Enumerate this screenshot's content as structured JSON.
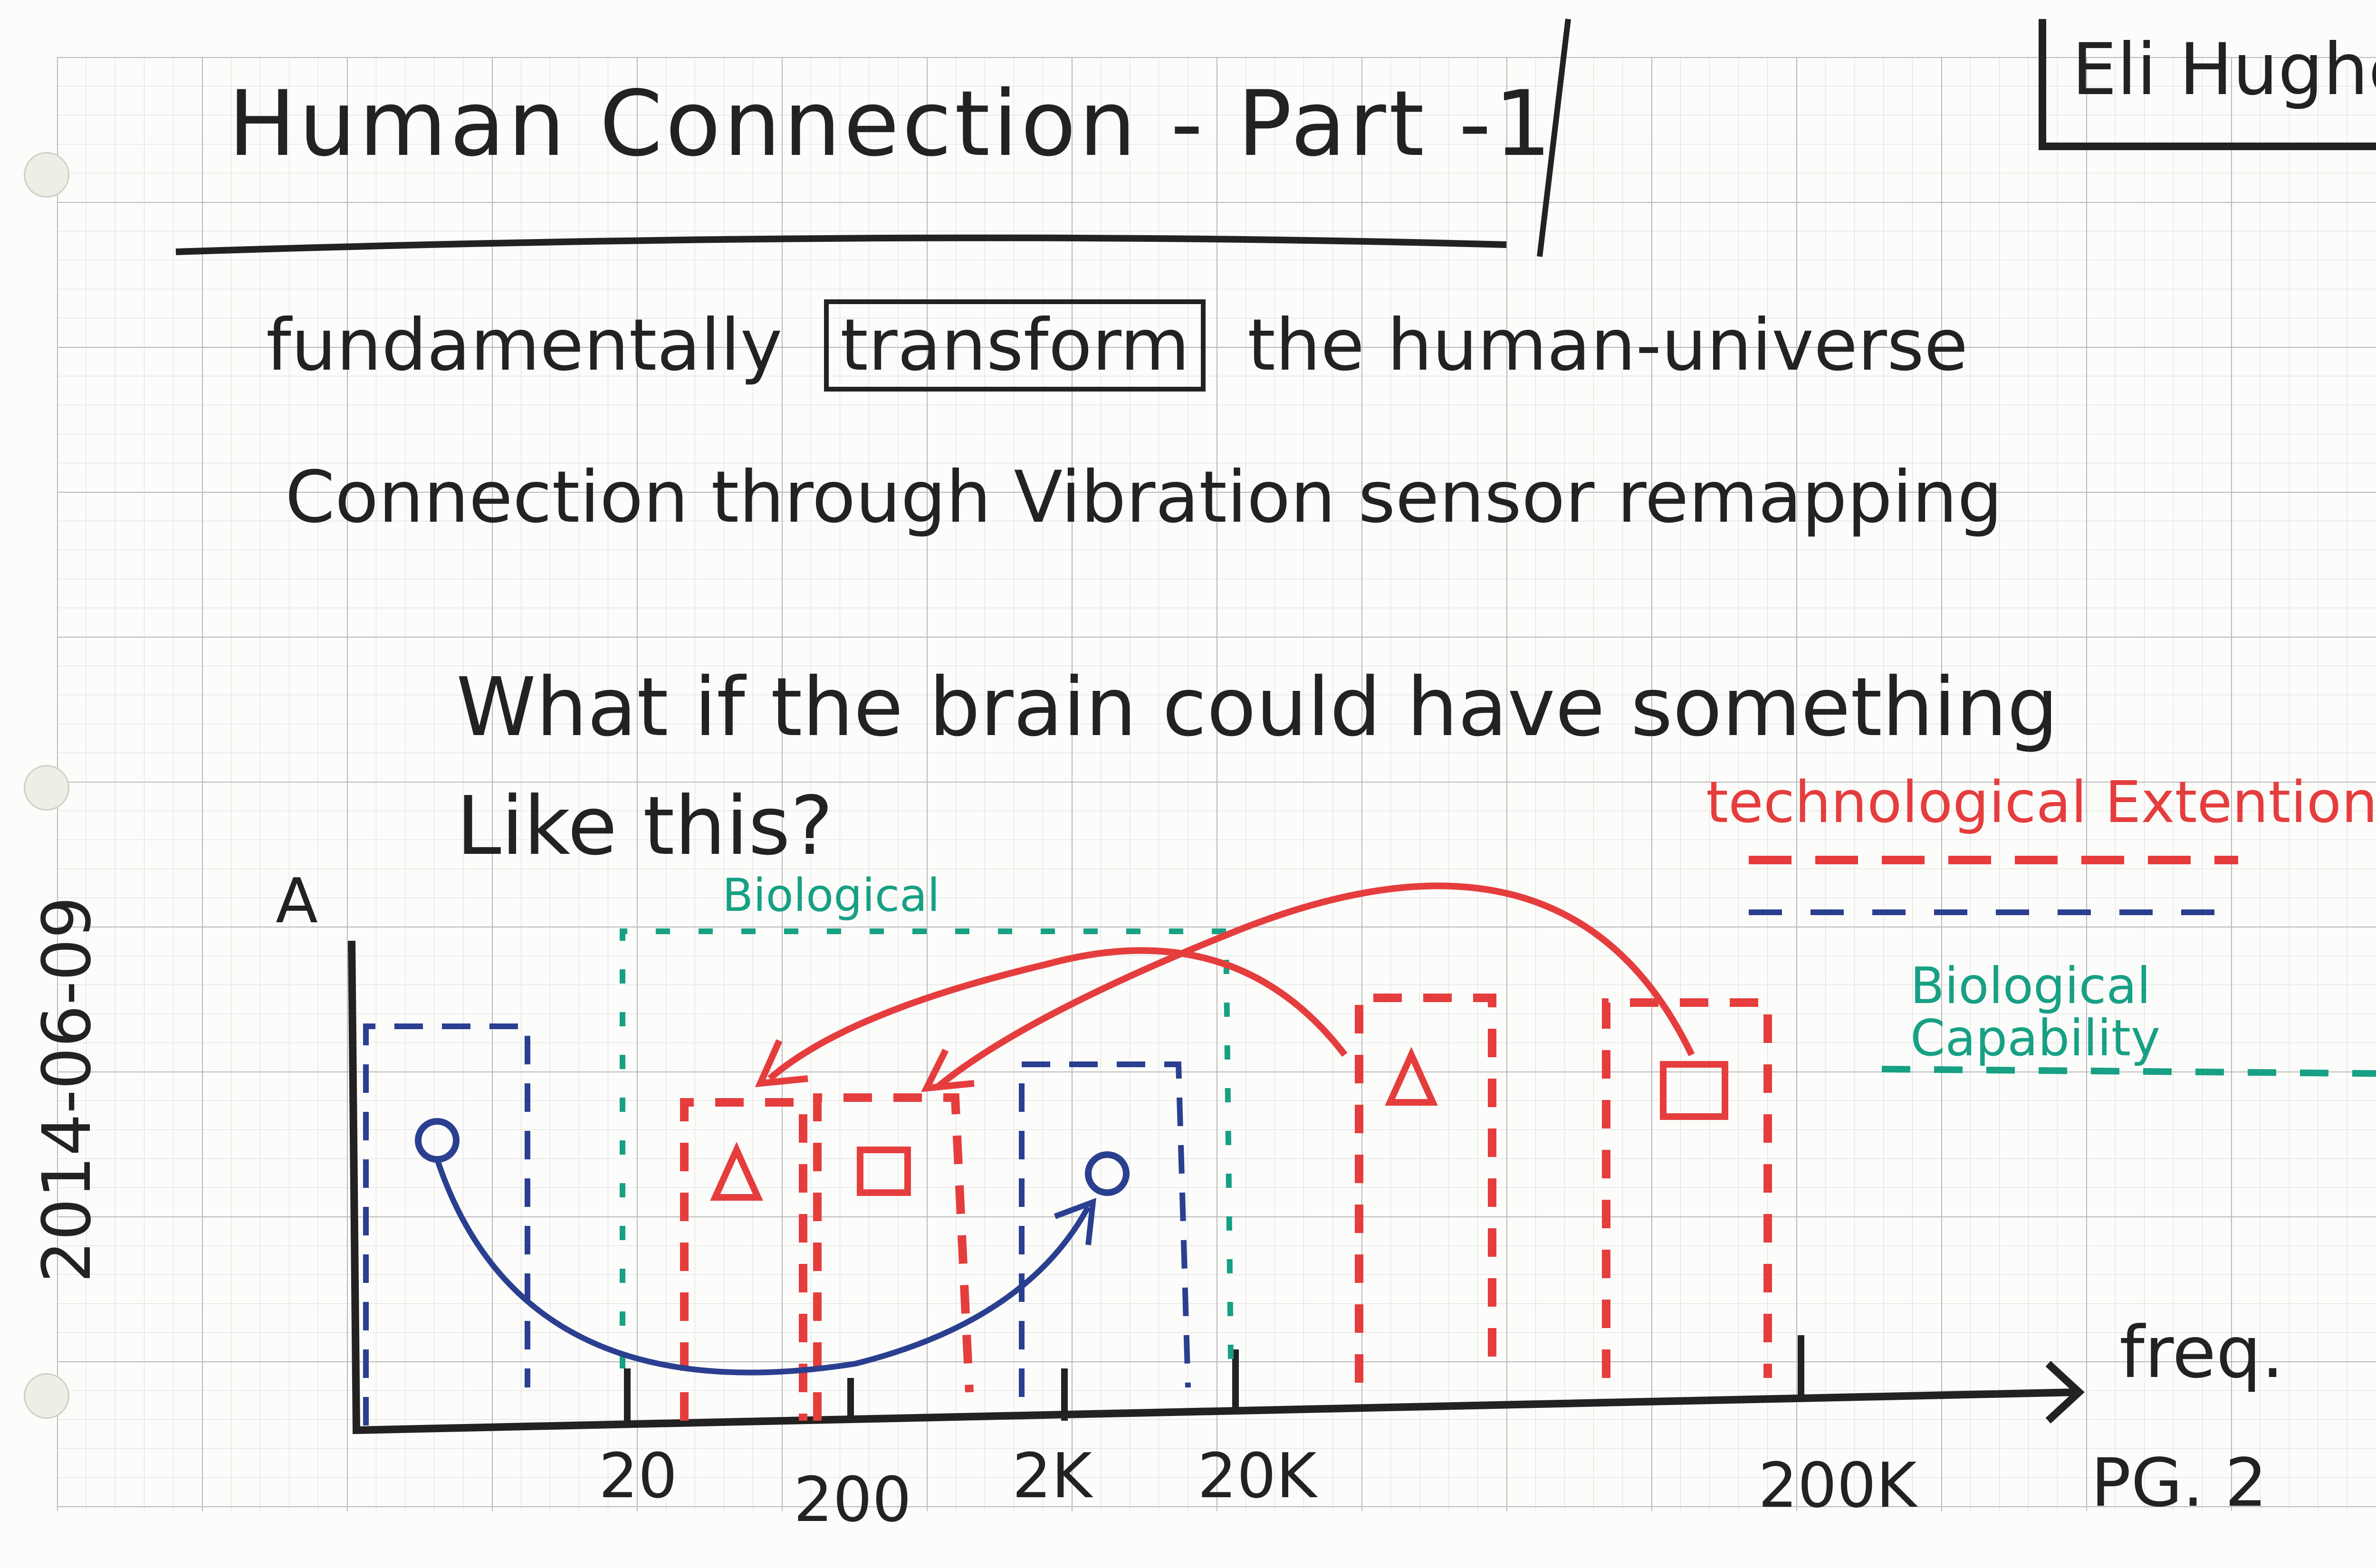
{
  "title": "Human Connection - Part -1",
  "author": "Eli Hughes",
  "date": "2014-06-09",
  "page_number": "PG. 2",
  "statement": {
    "line1_pre": "fundamentally",
    "boxed_word": "transform",
    "line1_post": "the human-universe",
    "line2": "Connection through Vibration sensor remapping"
  },
  "question": {
    "line1": "What if the brain could have something",
    "line2": "Like this?"
  },
  "diagram": {
    "y_axis_label": "A",
    "x_axis_label": "freq.",
    "x_ticks": [
      "20",
      "200",
      "2K",
      "20K",
      "200K"
    ],
    "biological_label": "Biological",
    "legend": {
      "technological": "technological Extention",
      "biological": "Biological Capability"
    },
    "colors": {
      "ink": "#222222",
      "blue": "#2a3f8f",
      "red": "#e53d3d",
      "teal": "#17a084"
    },
    "icons": [
      "circle-icon",
      "triangle-icon",
      "square-icon"
    ]
  }
}
